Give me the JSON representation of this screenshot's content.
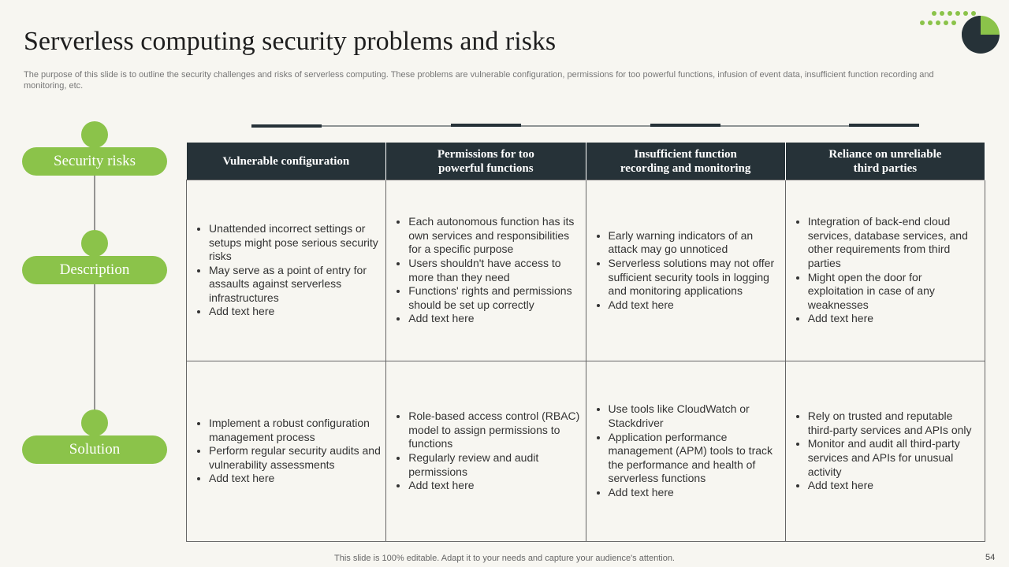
{
  "header": {
    "title": "Serverless computing security problems and risks",
    "subtitle": "The purpose of this slide is to outline the security challenges and risks of serverless computing. These problems are vulnerable configuration, permissions for too powerful functions, infusion of event data, insufficient function recording and monitoring, etc."
  },
  "row_labels": [
    "Security risks",
    "Description",
    "Solution"
  ],
  "table": {
    "columns": [
      "Vulnerable configuration",
      "Permissions for too powerful functions",
      "Insufficient function recording and monitoring",
      "Reliance on unreliable third parties"
    ],
    "rows": [
      [
        [
          "Unattended incorrect settings or setups might pose serious security risks",
          "May serve as a point of entry for assaults against serverless infrastructures",
          "Add text here"
        ],
        [
          "Each autonomous function has its own services and responsibilities for a specific purpose",
          "Users shouldn't have access to more than they need",
          "Functions' rights and permissions should be set up correctly",
          "Add text here"
        ],
        [
          "Early warning indicators of an attack may go unnoticed",
          "Serverless solutions may not offer sufficient security tools in logging and monitoring applications",
          "Add text here"
        ],
        [
          "Integration of back-end cloud services, database services, and other requirements from third parties",
          "Might open the door for exploitation in case of any weaknesses",
          "Add text here"
        ]
      ],
      [
        [
          "Implement a robust configuration management process",
          "Perform regular security audits and vulnerability assessments",
          "Add text here"
        ],
        [
          "Role-based access control (RBAC) model to assign permissions to functions",
          "Regularly review and audit permissions",
          "Add text here"
        ],
        [
          "Use tools like CloudWatch or Stackdriver",
          "Application performance management (APM) tools to track the performance and health of serverless functions",
          "Add text here"
        ],
        [
          "Rely on trusted and reputable third-party services and APIs only",
          "Monitor and audit all third-party services and APIs for unusual activity",
          "Add text here"
        ]
      ]
    ]
  },
  "footer": {
    "note": "This slide is 100% editable. Adapt it to your needs and capture your audience's attention.",
    "page": "54"
  }
}
